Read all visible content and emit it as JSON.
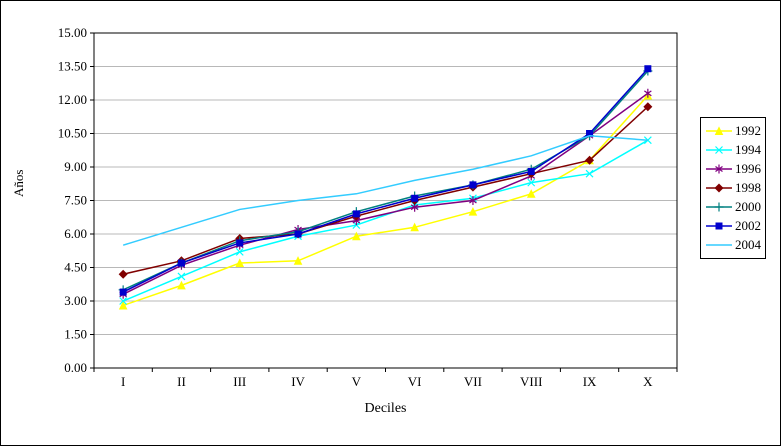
{
  "chart_data": {
    "type": "line",
    "title": "",
    "xlabel": "Deciles",
    "ylabel": "Años",
    "ylim": [
      0,
      15
    ],
    "ytick_step": 1.5,
    "ytick_decimals": 2,
    "grid": true,
    "legend_position": "right",
    "categories": [
      "I",
      "II",
      "III",
      "IV",
      "V",
      "VI",
      "VII",
      "VIII",
      "IX",
      "X"
    ],
    "series": [
      {
        "name": "1992",
        "color": "#FFFF00",
        "marker": "triangle",
        "values": [
          2.8,
          3.7,
          4.7,
          4.8,
          5.9,
          6.3,
          7.0,
          7.8,
          9.3,
          12.2
        ]
      },
      {
        "name": "1994",
        "color": "#00FFFF",
        "marker": "x",
        "values": [
          3.0,
          4.1,
          5.2,
          5.9,
          6.4,
          7.3,
          7.6,
          8.3,
          8.7,
          10.2
        ]
      },
      {
        "name": "1996",
        "color": "#800080",
        "marker": "asterisk",
        "values": [
          3.3,
          4.6,
          5.5,
          6.2,
          6.6,
          7.2,
          7.5,
          8.6,
          10.4,
          12.3
        ]
      },
      {
        "name": "1998",
        "color": "#800000",
        "marker": "diamond",
        "values": [
          4.2,
          4.8,
          5.8,
          6.0,
          6.8,
          7.5,
          8.1,
          8.7,
          9.3,
          11.7
        ]
      },
      {
        "name": "2000",
        "color": "#008080",
        "marker": "plus",
        "values": [
          3.5,
          4.7,
          5.7,
          6.1,
          7.0,
          7.7,
          8.2,
          8.9,
          10.4,
          13.3
        ]
      },
      {
        "name": "2002",
        "color": "#0000CD",
        "marker": "square",
        "values": [
          3.4,
          4.7,
          5.6,
          6.0,
          6.9,
          7.6,
          8.2,
          8.8,
          10.5,
          13.4
        ]
      },
      {
        "name": "2004",
        "color": "#33CCFF",
        "marker": "none",
        "values": [
          5.5,
          6.3,
          7.1,
          7.5,
          7.8,
          8.4,
          8.9,
          9.5,
          10.4,
          10.2
        ]
      }
    ]
  }
}
